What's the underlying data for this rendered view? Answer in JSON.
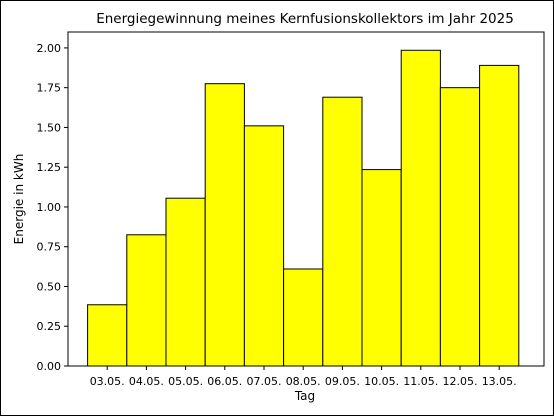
{
  "chart_data": {
    "type": "bar",
    "title": "Energiegewinnung meines Kernfusionskollektors im Jahr 2025",
    "xlabel": "Tag",
    "ylabel": "Energie in kWh",
    "categories": [
      "03.05.",
      "04.05.",
      "05.05.",
      "06.05.",
      "07.05.",
      "08.05.",
      "09.05.",
      "10.05.",
      "11.05.",
      "12.05.",
      "13.05."
    ],
    "values": [
      0.385,
      0.825,
      1.055,
      1.775,
      1.51,
      0.61,
      1.69,
      1.235,
      1.985,
      1.75,
      1.89
    ],
    "ylim": [
      0,
      2.1
    ],
    "yticks": [
      "0.00",
      "0.25",
      "0.50",
      "0.75",
      "1.00",
      "1.25",
      "1.50",
      "1.75",
      "2.00"
    ],
    "grid": false,
    "bar_color": "#ffff00",
    "edge_color": "#000000"
  }
}
